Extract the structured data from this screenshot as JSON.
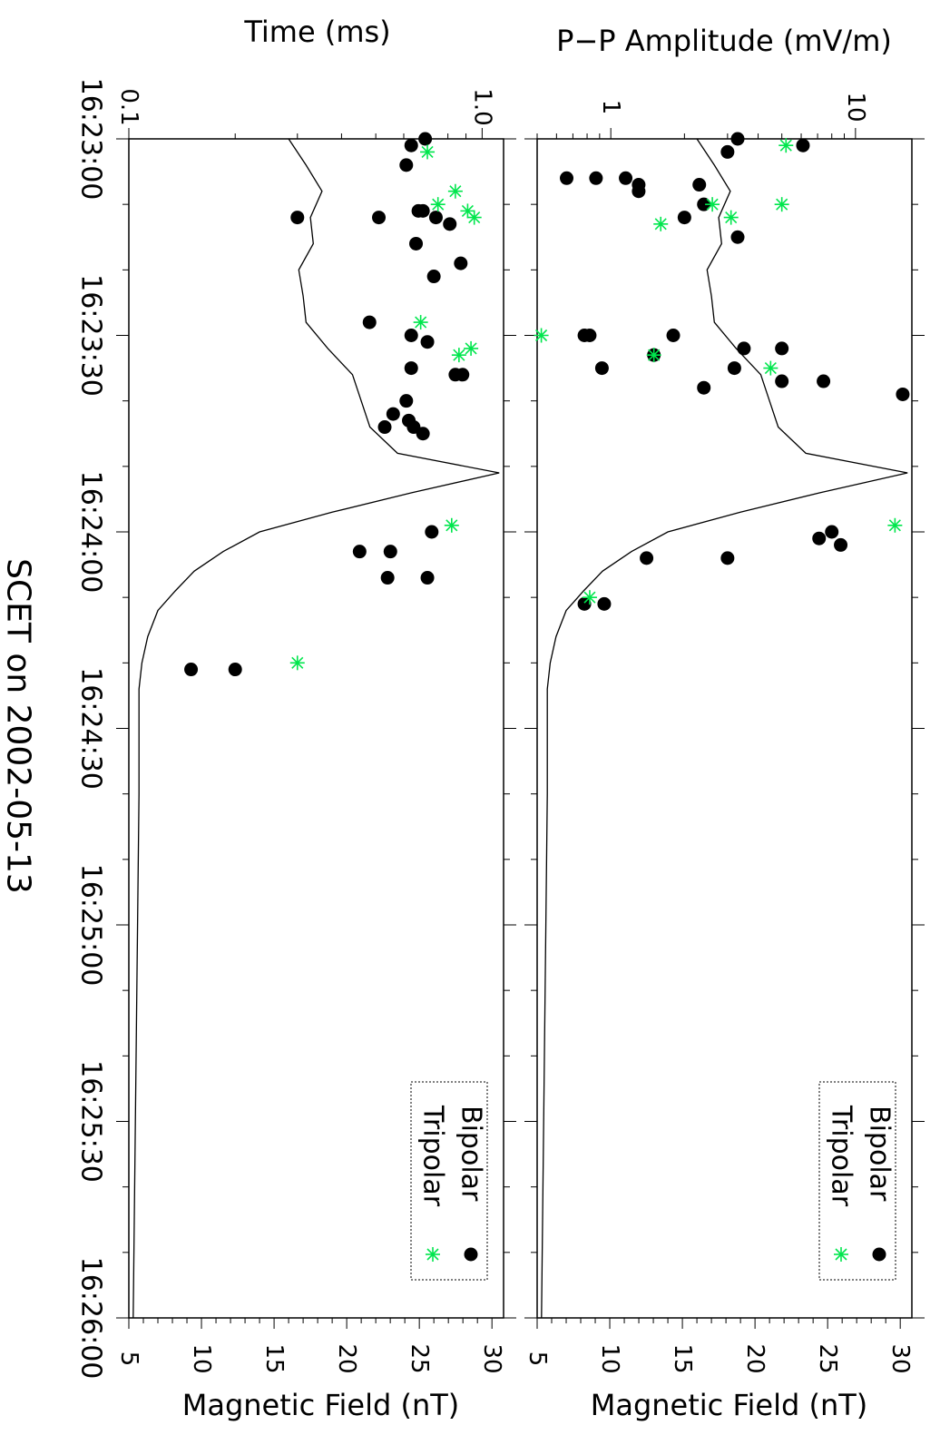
{
  "chart_data": [
    {
      "type": "scatter",
      "name": "amplitude-panel",
      "ylabel": "P−P Amplitude (mV/m)",
      "xlabel": "Magnetic Field (nT)",
      "time_ticks": [
        "16:23:00",
        "16:23:30",
        "16:24:00",
        "16:24:30",
        "16:25:00",
        "16:25:30",
        "16:26:00"
      ],
      "value_ticks": [
        "1",
        "10"
      ],
      "value_scale": "log",
      "value_range": [
        0.5,
        17
      ],
      "field_ticks": [
        "5",
        "10",
        "15",
        "20",
        "25",
        "30"
      ],
      "field_range": [
        5,
        30.8
      ],
      "legend": {
        "position": "bottom-right",
        "entries": [
          "Bipolar",
          "Tripolar"
        ]
      },
      "series": [
        {
          "name": "Bipolar",
          "marker": "circle",
          "color": "#000000",
          "points": [
            {
              "t": "16:23:00",
              "v": 3.3
            },
            {
              "t": "16:23:01",
              "v": 6.1
            },
            {
              "t": "16:23:02",
              "v": 3.0
            },
            {
              "t": "16:23:06",
              "v": 0.66
            },
            {
              "t": "16:23:06",
              "v": 1.15
            },
            {
              "t": "16:23:06",
              "v": 0.87
            },
            {
              "t": "16:23:07",
              "v": 1.3
            },
            {
              "t": "16:23:07",
              "v": 2.3
            },
            {
              "t": "16:23:08",
              "v": 1.3
            },
            {
              "t": "16:23:10",
              "v": 2.4
            },
            {
              "t": "16:23:12",
              "v": 2.0
            },
            {
              "t": "16:23:15",
              "v": 3.3
            },
            {
              "t": "16:23:30",
              "v": 0.78
            },
            {
              "t": "16:23:30",
              "v": 0.82
            },
            {
              "t": "16:23:30",
              "v": 1.8
            },
            {
              "t": "16:23:32",
              "v": 3.5
            },
            {
              "t": "16:23:32",
              "v": 5.0
            },
            {
              "t": "16:23:33",
              "v": 1.5
            },
            {
              "t": "16:23:35",
              "v": 0.92
            },
            {
              "t": "16:23:35",
              "v": 3.2
            },
            {
              "t": "16:23:37",
              "v": 5.0
            },
            {
              "t": "16:23:37",
              "v": 7.4
            },
            {
              "t": "16:23:38",
              "v": 2.4
            },
            {
              "t": "16:23:39",
              "v": 15.6
            },
            {
              "t": "16:24:00",
              "v": 8.0
            },
            {
              "t": "16:24:01",
              "v": 7.1
            },
            {
              "t": "16:24:02",
              "v": 8.7
            },
            {
              "t": "16:24:04",
              "v": 1.4
            },
            {
              "t": "16:24:04",
              "v": 3.0
            },
            {
              "t": "16:24:11",
              "v": 0.78
            },
            {
              "t": "16:24:11",
              "v": 0.94
            }
          ]
        },
        {
          "name": "Tripolar",
          "marker": "asterisk",
          "color": "#00e64d",
          "points": [
            {
              "t": "16:23:01",
              "v": 5.2
            },
            {
              "t": "16:23:10",
              "v": 5.0
            },
            {
              "t": "16:23:10",
              "v": 2.6
            },
            {
              "t": "16:23:13",
              "v": 1.6
            },
            {
              "t": "16:23:12",
              "v": 3.1
            },
            {
              "t": "16:23:30",
              "v": 0.52
            },
            {
              "t": "16:23:33",
              "v": 1.5
            },
            {
              "t": "16:23:35",
              "v": 4.5
            },
            {
              "t": "16:23:59",
              "v": 14.5
            },
            {
              "t": "16:24:10",
              "v": 0.82
            }
          ]
        }
      ]
    },
    {
      "type": "scatter",
      "name": "time-panel",
      "ylabel": "Time (ms)",
      "xlabel": "Magnetic Field (nT)",
      "time_ticks": [
        "16:23:00",
        "16:23:30",
        "16:24:00",
        "16:24:30",
        "16:25:00",
        "16:25:30",
        "16:26:00"
      ],
      "value_ticks": [
        "0.1",
        "1.0"
      ],
      "value_scale": "log",
      "value_range": [
        0.1,
        1.15
      ],
      "field_ticks": [
        "5",
        "10",
        "15",
        "20",
        "25",
        "30"
      ],
      "field_range": [
        5,
        30.8
      ],
      "legend": {
        "position": "bottom-right",
        "entries": [
          "Bipolar",
          "Tripolar"
        ]
      },
      "series": [
        {
          "name": "Bipolar",
          "marker": "circle",
          "color": "#000000",
          "points": [
            {
              "t": "16:23:00",
              "v": 0.69
            },
            {
              "t": "16:23:01",
              "v": 0.63
            },
            {
              "t": "16:23:04",
              "v": 0.61
            },
            {
              "t": "16:23:11",
              "v": 0.68
            },
            {
              "t": "16:23:11",
              "v": 0.66
            },
            {
              "t": "16:23:12",
              "v": 0.51
            },
            {
              "t": "16:23:12",
              "v": 0.74
            },
            {
              "t": "16:23:13",
              "v": 0.81
            },
            {
              "t": "16:23:12",
              "v": 0.3
            },
            {
              "t": "16:23:16",
              "v": 0.65
            },
            {
              "t": "16:23:19",
              "v": 0.87
            },
            {
              "t": "16:23:21",
              "v": 0.73
            },
            {
              "t": "16:23:28",
              "v": 0.48
            },
            {
              "t": "16:23:30",
              "v": 0.63
            },
            {
              "t": "16:23:31",
              "v": 0.7
            },
            {
              "t": "16:23:35",
              "v": 0.63
            },
            {
              "t": "16:23:36",
              "v": 0.84
            },
            {
              "t": "16:23:36",
              "v": 0.88
            },
            {
              "t": "16:23:40",
              "v": 0.61
            },
            {
              "t": "16:23:42",
              "v": 0.56
            },
            {
              "t": "16:23:43",
              "v": 0.62
            },
            {
              "t": "16:23:44",
              "v": 0.64
            },
            {
              "t": "16:23:44",
              "v": 0.53
            },
            {
              "t": "16:23:45",
              "v": 0.68
            },
            {
              "t": "16:24:00",
              "v": 0.72
            },
            {
              "t": "16:24:03",
              "v": 0.55
            },
            {
              "t": "16:24:03",
              "v": 0.45
            },
            {
              "t": "16:24:07",
              "v": 0.7
            },
            {
              "t": "16:24:07",
              "v": 0.54
            },
            {
              "t": "16:24:21",
              "v": 0.15
            },
            {
              "t": "16:24:21",
              "v": 0.2
            }
          ]
        },
        {
          "name": "Tripolar",
          "marker": "asterisk",
          "color": "#00e64d",
          "points": [
            {
              "t": "16:23:02",
              "v": 0.7
            },
            {
              "t": "16:23:08",
              "v": 0.84
            },
            {
              "t": "16:23:10",
              "v": 0.75
            },
            {
              "t": "16:23:11",
              "v": 0.91
            },
            {
              "t": "16:23:12",
              "v": 0.95
            },
            {
              "t": "16:23:28",
              "v": 0.67
            },
            {
              "t": "16:23:33",
              "v": 0.86
            },
            {
              "t": "16:23:32",
              "v": 0.93
            },
            {
              "t": "16:23:59",
              "v": 0.82
            },
            {
              "t": "16:24:20",
              "v": 0.3
            }
          ]
        }
      ]
    }
  ],
  "field_line": {
    "name": "Magnetic Field",
    "units": "nT",
    "points": [
      {
        "t": "16:23:00",
        "b": 16.0
      },
      {
        "t": "16:23:04",
        "b": 17.2
      },
      {
        "t": "16:23:08",
        "b": 18.3
      },
      {
        "t": "16:23:12",
        "b": 17.5
      },
      {
        "t": "16:23:16",
        "b": 17.7
      },
      {
        "t": "16:23:20",
        "b": 16.7
      },
      {
        "t": "16:23:24",
        "b": 17.0
      },
      {
        "t": "16:23:28",
        "b": 17.2
      },
      {
        "t": "16:23:32",
        "b": 18.7
      },
      {
        "t": "16:23:36",
        "b": 20.4
      },
      {
        "t": "16:23:40",
        "b": 21.0
      },
      {
        "t": "16:23:44",
        "b": 21.6
      },
      {
        "t": "16:23:48",
        "b": 23.5
      },
      {
        "t": "16:23:51",
        "b": 30.5
      },
      {
        "t": "16:23:54",
        "b": 24.5
      },
      {
        "t": "16:23:57",
        "b": 19.0
      },
      {
        "t": "16:24:00",
        "b": 14.0
      },
      {
        "t": "16:24:03",
        "b": 11.5
      },
      {
        "t": "16:24:06",
        "b": 9.5
      },
      {
        "t": "16:24:09",
        "b": 8.2
      },
      {
        "t": "16:24:12",
        "b": 7.0
      },
      {
        "t": "16:24:16",
        "b": 6.3
      },
      {
        "t": "16:24:20",
        "b": 5.9
      },
      {
        "t": "16:24:24",
        "b": 5.7
      },
      {
        "t": "16:24:40",
        "b": 5.7
      },
      {
        "t": "16:25:00",
        "b": 5.6
      },
      {
        "t": "16:25:20",
        "b": 5.5
      },
      {
        "t": "16:25:40",
        "b": 5.4
      },
      {
        "t": "16:26:00",
        "b": 5.3
      }
    ]
  },
  "footer": {
    "xlabel": "SCET on 2002-05-13"
  }
}
